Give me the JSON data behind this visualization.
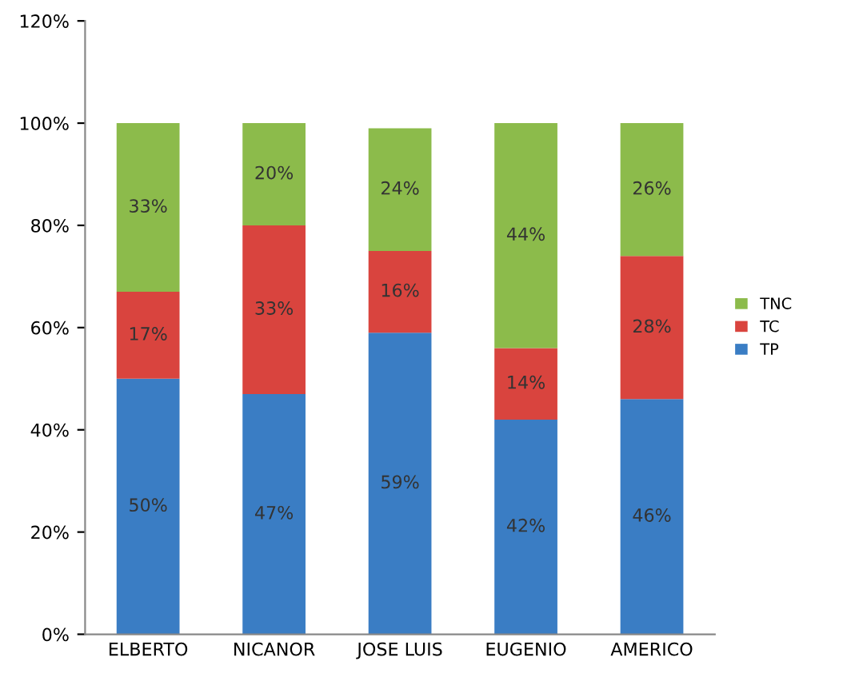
{
  "chart_data": {
    "type": "bar",
    "stacked": true,
    "categories": [
      "ELBERTO",
      "NICANOR",
      "JOSE LUIS",
      "EUGENIO",
      "AMERICO"
    ],
    "series": [
      {
        "name": "TP",
        "color": "#3a7dc4",
        "values": [
          50,
          47,
          59,
          42,
          46
        ],
        "value_labels": [
          "50%",
          "47%",
          "59%",
          "42%",
          "46%"
        ]
      },
      {
        "name": "TC",
        "color": "#d9443e",
        "values": [
          17,
          33,
          16,
          14,
          28
        ],
        "value_labels": [
          "17%",
          "33%",
          "16%",
          "14%",
          "28%"
        ]
      },
      {
        "name": "TNC",
        "color": "#8cbb4b",
        "values": [
          33,
          20,
          24,
          44,
          26
        ],
        "value_labels": [
          "33%",
          "20%",
          "24%",
          "44%",
          "26%"
        ]
      }
    ],
    "ylim": [
      0,
      120
    ],
    "yticks": [
      {
        "value": 0,
        "label": "0%"
      },
      {
        "value": 20,
        "label": "20%"
      },
      {
        "value": 40,
        "label": "40%"
      },
      {
        "value": 60,
        "label": "60%"
      },
      {
        "value": 80,
        "label": "80%"
      },
      {
        "value": 100,
        "label": "100%"
      },
      {
        "value": 120,
        "label": "120%"
      }
    ],
    "grid": false,
    "legend": "right"
  }
}
